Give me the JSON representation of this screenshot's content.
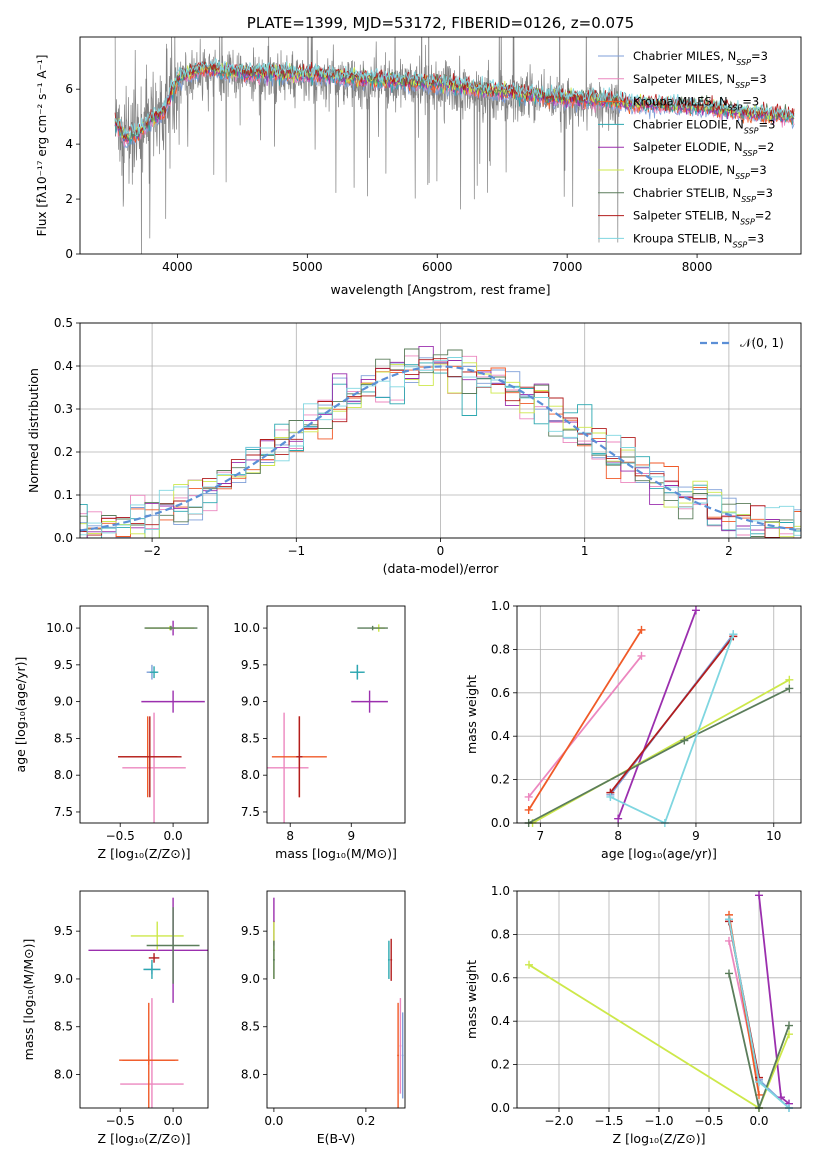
{
  "colors": {
    "c1": "#7f9fd8",
    "c2": "#ec87bf",
    "c3": "#f05a28",
    "c4": "#2ca8b0",
    "c5": "#9b2fae",
    "c6": "#cde84a",
    "c7": "#5b7d5b",
    "c8": "#b21d1d",
    "c9": "#7fd6e0",
    "data": "#808080",
    "norm": "#5b8fd6",
    "grid": "#b0b0b0"
  },
  "legend": [
    {
      "name": "Chabrier MILES, N",
      "n": "=3",
      "color": "c1"
    },
    {
      "name": "Salpeter MILES, N",
      "n": "=3",
      "color": "c2"
    },
    {
      "name": "Kroupa MILES, N",
      "n": "=3",
      "color": "c3"
    },
    {
      "name": "Chabrier ELODIE, N",
      "n": "=3",
      "color": "c4"
    },
    {
      "name": "Salpeter ELODIE, N",
      "n": "=2",
      "color": "c5"
    },
    {
      "name": "Kroupa ELODIE, N",
      "n": "=3",
      "color": "c6"
    },
    {
      "name": "Chabrier STELIB, N",
      "n": "=3",
      "color": "c7"
    },
    {
      "name": "Salpeter STELIB, N",
      "n": "=2",
      "color": "c8"
    },
    {
      "name": "Kroupa STELIB, N",
      "n": "=3",
      "color": "c9"
    }
  ],
  "chart_data": [
    {
      "id": "spectrum",
      "type": "line",
      "title": "PLATE=1399, MJD=53172, FIBERID=0126, z=0.075",
      "xlabel": "wavelength [Angstrom, rest frame]",
      "ylabel": "Flux [fλ10⁻¹⁷ erg cm⁻² s⁻¹ A⁻¹]",
      "xlim": [
        3250,
        8800
      ],
      "ylim": [
        0,
        7.9
      ],
      "xticks": [
        4000,
        5000,
        6000,
        7000,
        8000
      ],
      "yticks": [
        0,
        2,
        4,
        6
      ],
      "grid": false,
      "legend_position": "top-right",
      "data_continuum": [
        [
          3520,
          5.0
        ],
        [
          3600,
          4.3
        ],
        [
          3700,
          4.5
        ],
        [
          3800,
          5.0
        ],
        [
          3900,
          5.2
        ],
        [
          4000,
          6.3
        ],
        [
          4200,
          6.6
        ],
        [
          4500,
          6.5
        ],
        [
          5000,
          6.4
        ],
        [
          5500,
          6.2
        ],
        [
          6000,
          6.1
        ],
        [
          6500,
          5.8
        ],
        [
          7000,
          5.6
        ],
        [
          7300,
          5.5
        ],
        [
          7400,
          5.45
        ]
      ],
      "model_continuum": [
        [
          3520,
          4.8
        ],
        [
          3600,
          4.2
        ],
        [
          3700,
          4.4
        ],
        [
          3800,
          4.9
        ],
        [
          3900,
          5.2
        ],
        [
          4000,
          6.4
        ],
        [
          4200,
          6.75
        ],
        [
          4500,
          6.6
        ],
        [
          5000,
          6.55
        ],
        [
          5500,
          6.35
        ],
        [
          6000,
          6.2
        ],
        [
          6500,
          5.9
        ],
        [
          7000,
          5.65
        ],
        [
          7300,
          5.6
        ],
        [
          7450,
          5.5
        ],
        [
          8000,
          5.35
        ],
        [
          8500,
          5.1
        ],
        [
          8750,
          5.0
        ]
      ]
    },
    {
      "id": "residuals",
      "type": "line",
      "xlabel": "(data-model)/error",
      "ylabel": "Normed distribution",
      "xlim": [
        -2.5,
        2.5
      ],
      "ylim": [
        0,
        0.5
      ],
      "xticks": [
        -2,
        -1,
        0,
        1,
        2
      ],
      "yticks": [
        0,
        0.1,
        0.2,
        0.3,
        0.4,
        0.5
      ],
      "grid": true,
      "legend_position": "top-right",
      "reference_label": "𝒩(0, 1)",
      "reference_curve": "normal pdf, mean 0, sigma 1",
      "hist_bin_width": 0.1
    },
    {
      "id": "age_vs_Z",
      "type": "scatter",
      "xlabel": "Z [log₁₀(Z/Z⊙)]",
      "ylabel": "age  [log₁₀(age/yr)]",
      "xlim": [
        -0.88,
        0.33
      ],
      "ylim": [
        7.35,
        10.3
      ],
      "xticks": [
        -0.5,
        0.0
      ],
      "yticks": [
        7.5,
        8.0,
        8.5,
        9.0,
        9.5,
        10.0
      ],
      "points": [
        {
          "c": "c1",
          "x": -0.2,
          "y": 9.4,
          "xe": 0.05,
          "ye": 0.1
        },
        {
          "c": "c2",
          "x": -0.18,
          "y": 8.1,
          "xe": 0.3,
          "ye": 0.75
        },
        {
          "c": "c3",
          "x": -0.24,
          "y": 8.25,
          "xe": 0.28,
          "ye": 0.55
        },
        {
          "c": "c4",
          "x": -0.18,
          "y": 9.4,
          "xe": 0.04,
          "ye": 0.08
        },
        {
          "c": "c5",
          "x": 0.0,
          "y": 9.0,
          "xe": 0.3,
          "ye": 0.15
        },
        {
          "c": "c5",
          "x": 0.0,
          "y": 10.0,
          "xe": 0.02,
          "ye": 0.1
        },
        {
          "c": "c6",
          "x": -0.03,
          "y": 10.0,
          "xe": 0.23,
          "ye": 0.03
        },
        {
          "c": "c7",
          "x": -0.02,
          "y": 10.0,
          "xe": 0.25,
          "ye": 0.03
        },
        {
          "c": "c8",
          "x": -0.22,
          "y": 8.25,
          "xe": 0.3,
          "ye": 0.55
        }
      ]
    },
    {
      "id": "age_vs_mass",
      "type": "scatter",
      "xlabel": "mass [log₁₀(M/M⊙)]",
      "ylabel": "",
      "xlim": [
        7.62,
        9.88
      ],
      "ylim": [
        7.35,
        10.3
      ],
      "xticks": [
        8,
        9
      ],
      "yticks": [
        7.5,
        8.0,
        8.5,
        9.0,
        9.5,
        10.0
      ],
      "points": [
        {
          "c": "c1",
          "x": 9.1,
          "y": 9.4,
          "xe": 0.1,
          "ye": 0.1
        },
        {
          "c": "c2",
          "x": 7.9,
          "y": 8.1,
          "xe": 0.4,
          "ye": 0.75
        },
        {
          "c": "c3",
          "x": 8.15,
          "y": 8.25,
          "xe": 0.45,
          "ye": 0.55
        },
        {
          "c": "c4",
          "x": 9.1,
          "y": 9.4,
          "xe": 0.12,
          "ye": 0.1
        },
        {
          "c": "c5",
          "x": 9.3,
          "y": 9.0,
          "xe": 0.3,
          "ye": 0.15
        },
        {
          "c": "c6",
          "x": 9.45,
          "y": 10.0,
          "xe": 0.1,
          "ye": 0.05
        },
        {
          "c": "c7",
          "x": 9.35,
          "y": 10.0,
          "xe": 0.25,
          "ye": 0.03
        },
        {
          "c": "c8",
          "x": 8.15,
          "y": 8.25,
          "xe": 0.05,
          "ye": 0.55
        }
      ]
    },
    {
      "id": "weight_vs_age",
      "type": "line",
      "xlabel": "age  [log₁₀(age/yr)]",
      "ylabel": "mass weight",
      "xlim": [
        6.7,
        10.35
      ],
      "ylim": [
        0,
        1.0
      ],
      "xticks": [
        7,
        8,
        9,
        10
      ],
      "yticks": [
        0.0,
        0.2,
        0.4,
        0.6,
        0.8,
        1.0
      ],
      "grid": true,
      "series": [
        {
          "c": "c1",
          "x": [
            7.9,
            9.48
          ],
          "y": [
            0.13,
            0.87
          ]
        },
        {
          "c": "c2",
          "x": [
            6.85,
            8.3
          ],
          "y": [
            0.12,
            0.77
          ]
        },
        {
          "c": "c3",
          "x": [
            6.85,
            8.3
          ],
          "y": [
            0.06,
            0.89
          ]
        },
        {
          "c": "c5",
          "x": [
            8.0,
            9.0
          ],
          "y": [
            0.02,
            0.98
          ]
        },
        {
          "c": "c6",
          "x": [
            6.9,
            10.2
          ],
          "y": [
            0.0,
            0.66
          ]
        },
        {
          "c": "c7",
          "x": [
            6.85,
            8.85,
            10.2
          ],
          "y": [
            0.0,
            0.38,
            0.62
          ]
        },
        {
          "c": "c8",
          "x": [
            7.9,
            9.48
          ],
          "y": [
            0.14,
            0.86
          ]
        },
        {
          "c": "c9",
          "x": [
            7.9,
            8.6,
            9.48
          ],
          "y": [
            0.12,
            0.0,
            0.87
          ]
        }
      ]
    },
    {
      "id": "mass_vs_Z",
      "type": "scatter",
      "xlabel": "Z [log₁₀(Z/Z⊙)]",
      "ylabel": "mass [log₁₀(M/M⊙)]",
      "xlim": [
        -0.88,
        0.33
      ],
      "ylim": [
        7.65,
        9.92
      ],
      "xticks": [
        -0.5,
        0.0
      ],
      "yticks": [
        8.0,
        8.5,
        9.0,
        9.5
      ],
      "points": [
        {
          "c": "c1",
          "x": -0.2,
          "y": 9.1,
          "xe": 0.08,
          "ye": 0.05
        },
        {
          "c": "c2",
          "x": -0.2,
          "y": 7.9,
          "xe": 0.3,
          "ye": 0.9
        },
        {
          "c": "c3",
          "x": -0.23,
          "y": 8.15,
          "xe": 0.28,
          "ye": 0.6
        },
        {
          "c": "c4",
          "x": -0.2,
          "y": 9.1,
          "xe": 0.08,
          "ye": 0.1
        },
        {
          "c": "c5",
          "x": 0.0,
          "y": 9.3,
          "xe": 0.8,
          "ye": 0.55
        },
        {
          "c": "c6",
          "x": -0.15,
          "y": 9.45,
          "xe": 0.25,
          "ye": 0.15
        },
        {
          "c": "c7",
          "x": 0.0,
          "y": 9.35,
          "xe": 0.25,
          "ye": 0.4
        },
        {
          "c": "c8",
          "x": -0.18,
          "y": 9.22,
          "xe": 0.05,
          "ye": 0.05
        },
        {
          "c": "c3",
          "x": -0.23,
          "y": 8.15,
          "xe": 0.25,
          "ye": 0.05
        }
      ]
    },
    {
      "id": "mass_vs_EBV",
      "type": "scatter",
      "xlabel": "E(B-V)",
      "ylabel": "",
      "xlim": [
        -0.015,
        0.285
      ],
      "ylim": [
        7.65,
        9.92
      ],
      "xticks": [
        0.0,
        0.2
      ],
      "yticks": [
        8.0,
        8.5,
        9.0,
        9.5
      ],
      "points": [
        {
          "c": "c5",
          "x": 0.0,
          "y": 9.6,
          "xe": 0.002,
          "ye": 0.25
        },
        {
          "c": "c6",
          "x": 0.0,
          "y": 9.3,
          "xe": 0.002,
          "ye": 0.3
        },
        {
          "c": "c7",
          "x": 0.0,
          "y": 9.2,
          "xe": 0.002,
          "ye": 0.2
        },
        {
          "c": "c4",
          "x": 0.25,
          "y": 9.2,
          "xe": 0.002,
          "ye": 0.2
        },
        {
          "c": "c8",
          "x": 0.255,
          "y": 9.2,
          "xe": 0.002,
          "ye": 0.22
        },
        {
          "c": "c3",
          "x": 0.27,
          "y": 8.2,
          "xe": 0.002,
          "ye": 0.55
        },
        {
          "c": "c2",
          "x": 0.275,
          "y": 8.3,
          "xe": 0.002,
          "ye": 0.5
        },
        {
          "c": "c1",
          "x": 0.28,
          "y": 8.2,
          "xe": 0.002,
          "ye": 0.45
        }
      ]
    },
    {
      "id": "weight_vs_Z",
      "type": "line",
      "xlabel": "Z [log₁₀(Z/Z⊙)]",
      "ylabel": "mass weight",
      "xlim": [
        -2.42,
        0.42
      ],
      "ylim": [
        0,
        1.0
      ],
      "xticks": [
        -2.0,
        -1.5,
        -1.0,
        -0.5,
        0.0
      ],
      "yticks": [
        0.0,
        0.2,
        0.4,
        0.6,
        0.8,
        1.0
      ],
      "grid": true,
      "series": [
        {
          "c": "c1",
          "x": [
            -0.3,
            0.0,
            0.3
          ],
          "y": [
            0.87,
            0.13,
            0.0
          ]
        },
        {
          "c": "c2",
          "x": [
            -0.3,
            0.0
          ],
          "y": [
            0.77,
            0.12
          ]
        },
        {
          "c": "c3",
          "x": [
            -0.3,
            0.0
          ],
          "y": [
            0.89,
            0.06
          ]
        },
        {
          "c": "c5",
          "x": [
            0.0,
            0.22,
            0.3
          ],
          "y": [
            0.98,
            0.05,
            0.02
          ]
        },
        {
          "c": "c6",
          "x": [
            -2.3,
            0.0,
            0.3
          ],
          "y": [
            0.66,
            0.0,
            0.34
          ]
        },
        {
          "c": "c7",
          "x": [
            -0.3,
            0.0,
            0.3
          ],
          "y": [
            0.62,
            0.0,
            0.38
          ]
        },
        {
          "c": "c8",
          "x": [
            -0.3,
            0.0
          ],
          "y": [
            0.86,
            0.14
          ]
        },
        {
          "c": "c9",
          "x": [
            -0.3,
            0.0,
            0.3
          ],
          "y": [
            0.87,
            0.12,
            0.0
          ]
        }
      ]
    }
  ]
}
